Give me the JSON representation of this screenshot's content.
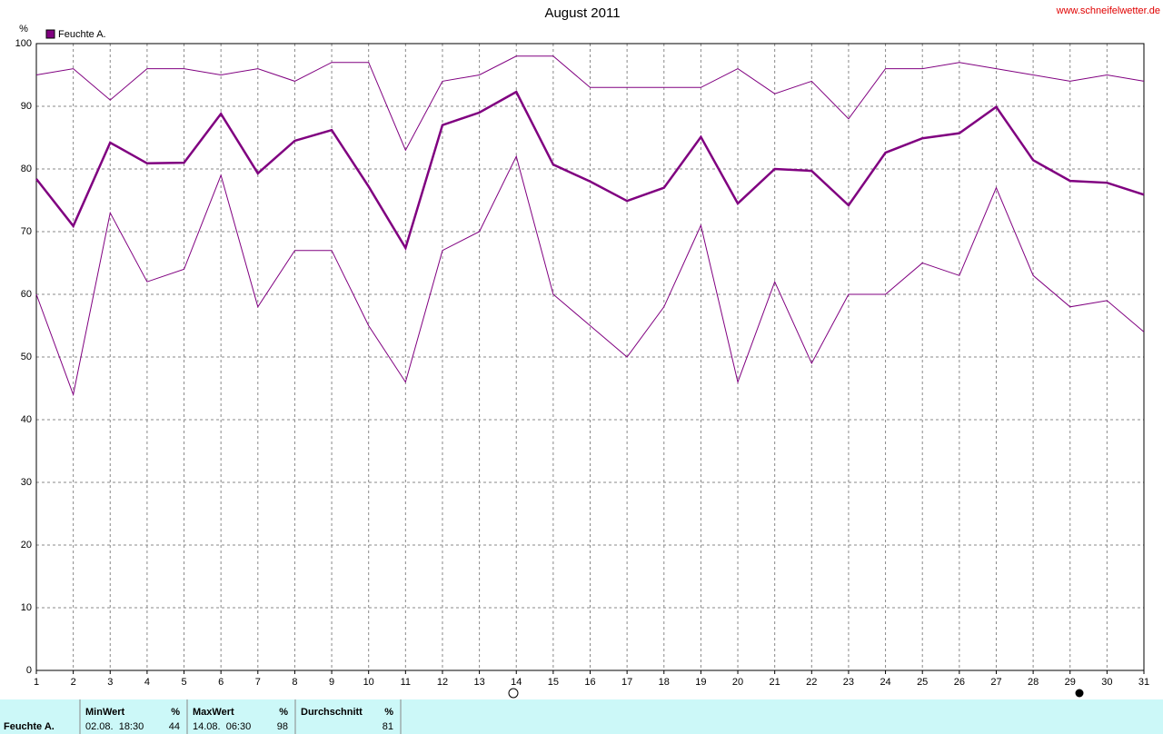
{
  "chart_data": {
    "type": "line",
    "title": "August 2011",
    "source": "www.schneifelwetter.de",
    "y_unit": "%",
    "legend": {
      "label": "Feuchte A.",
      "color": "#800080"
    },
    "x": [
      1,
      2,
      3,
      4,
      5,
      6,
      7,
      8,
      9,
      10,
      11,
      12,
      13,
      14,
      15,
      16,
      17,
      18,
      19,
      20,
      21,
      22,
      23,
      24,
      25,
      26,
      27,
      28,
      29,
      30,
      31
    ],
    "xlim": [
      1,
      31
    ],
    "xticks": [
      1,
      2,
      3,
      4,
      5,
      6,
      7,
      8,
      9,
      10,
      11,
      12,
      13,
      14,
      15,
      16,
      17,
      18,
      19,
      20,
      21,
      22,
      23,
      24,
      25,
      26,
      27,
      28,
      29,
      30,
      31
    ],
    "ylim": [
      0,
      100
    ],
    "yticks": [
      0,
      10,
      20,
      30,
      40,
      50,
      60,
      70,
      80,
      90,
      100
    ],
    "grid": true,
    "series": [
      {
        "color": "#800080",
        "width": 1,
        "values": [
          95,
          96,
          91,
          96,
          96,
          95,
          96,
          94,
          97,
          97,
          83,
          94,
          95,
          98,
          98,
          93,
          93,
          93,
          93,
          96,
          92,
          94,
          88,
          96,
          96,
          97,
          96,
          95,
          94,
          95,
          94
        ]
      },
      {
        "color": "#800080",
        "width": 2.5,
        "values": [
          78.4,
          70.9,
          84.2,
          80.9,
          81,
          88.8,
          79.3,
          84.5,
          86.2,
          77.2,
          67.4,
          87,
          89,
          92.3,
          80.7,
          78,
          74.9,
          77,
          85.1,
          74.5,
          80,
          79.7,
          74.2,
          82.6,
          84.9,
          85.7,
          89.9,
          81.4,
          78.1,
          77.8,
          75.9
        ]
      },
      {
        "color": "#800080",
        "width": 1,
        "values": [
          60,
          44,
          73,
          62,
          64,
          79,
          58,
          67,
          67,
          55,
          46,
          67,
          70,
          82,
          60,
          55,
          50,
          58,
          71,
          46,
          62,
          49,
          60,
          60,
          65,
          63,
          77,
          63,
          58,
          59,
          54
        ]
      }
    ]
  },
  "table": {
    "row_label": "Feuchte A.",
    "columns": [
      {
        "header": "MinWert",
        "unit": "%",
        "time": "02.08.  18:30",
        "value": 44
      },
      {
        "header": "MaxWert",
        "unit": "%",
        "time": "14.08.  06:30",
        "value": 98
      },
      {
        "header": "Durchschnitt",
        "unit": "%",
        "value": 81
      }
    ]
  }
}
